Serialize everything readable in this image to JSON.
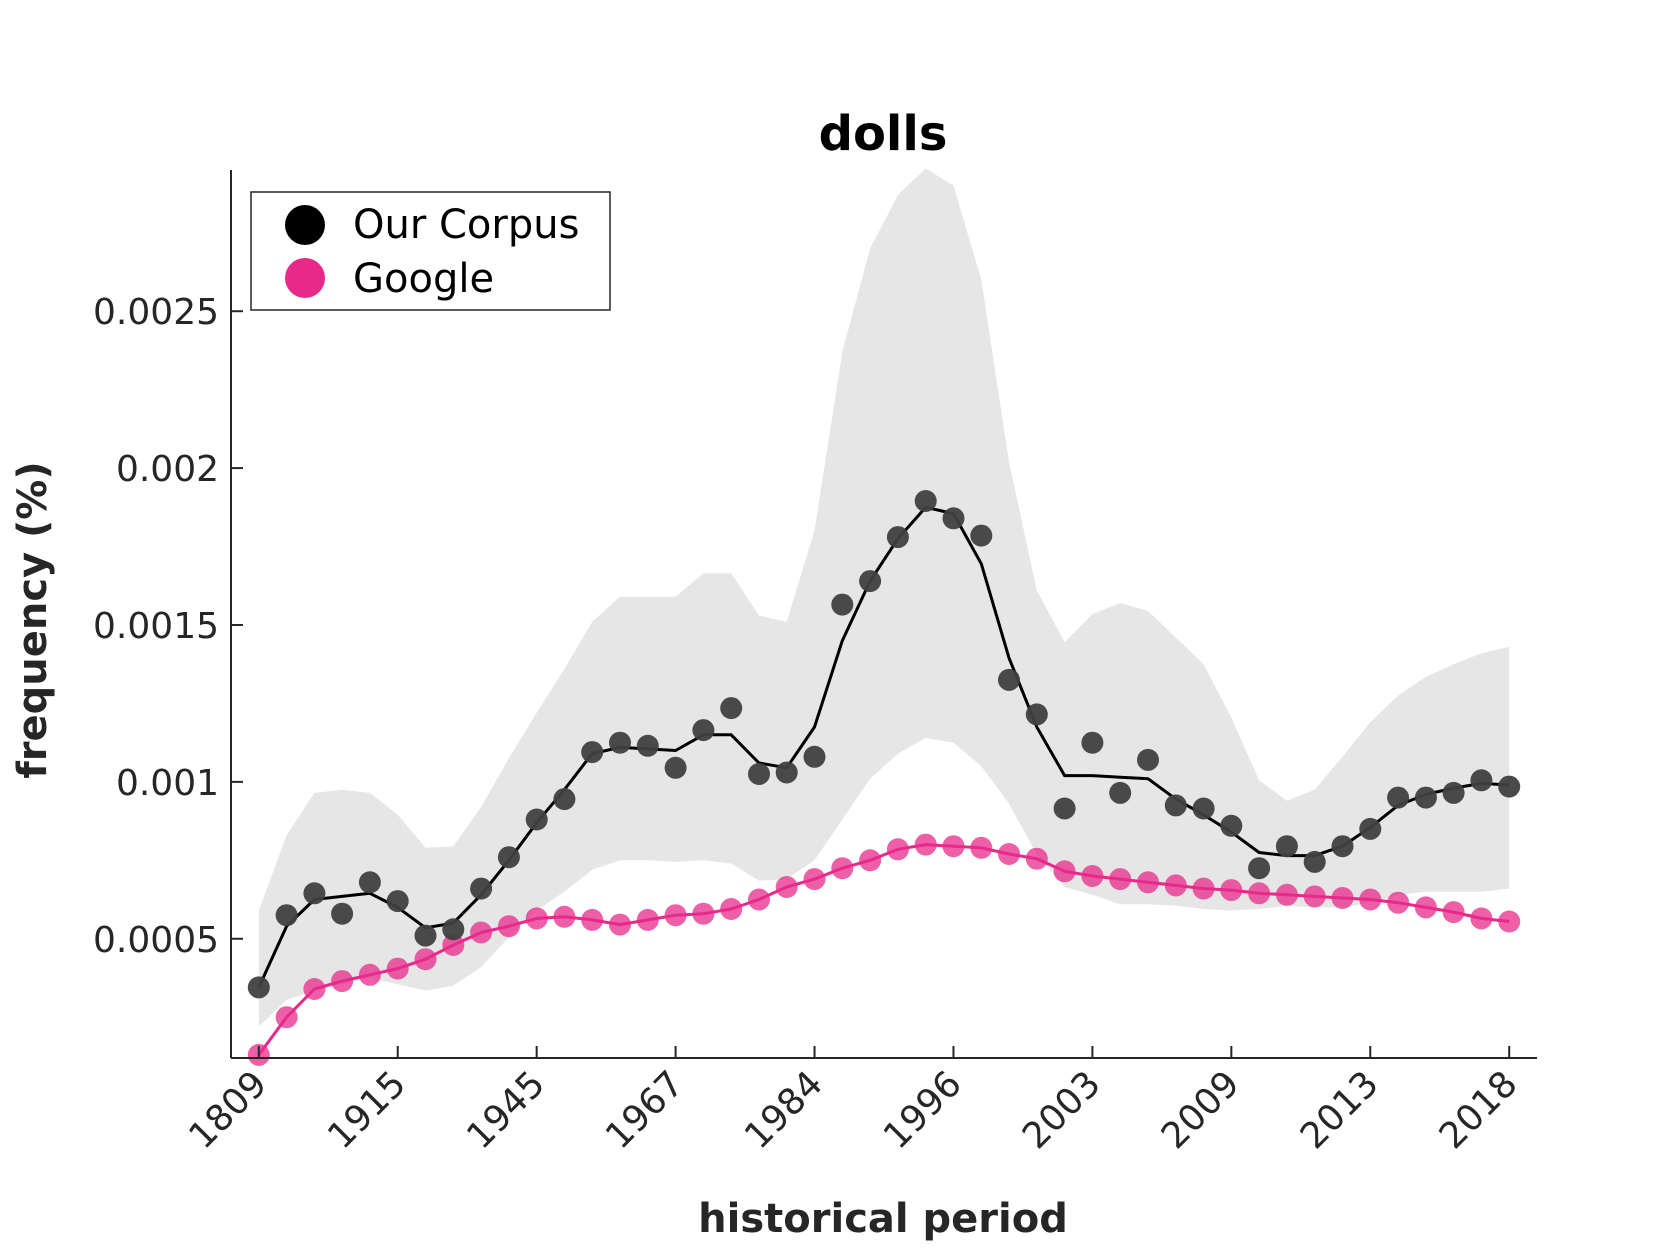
{
  "chart_data": {
    "type": "line",
    "title": "dolls",
    "xlabel": "historical period",
    "ylabel": "frequency (%)",
    "xtick_labels": [
      "1809",
      "1915",
      "1945",
      "1967",
      "1984",
      "1996",
      "2003",
      "2009",
      "2013",
      "2018"
    ],
    "xtick_positions": [
      1,
      6,
      11,
      16,
      21,
      26,
      31,
      36,
      41,
      46
    ],
    "x": [
      1,
      2,
      3,
      4,
      5,
      6,
      7,
      8,
      9,
      10,
      11,
      12,
      13,
      14,
      15,
      16,
      17,
      18,
      19,
      20,
      21,
      22,
      23,
      24,
      25,
      26,
      27,
      28,
      29,
      30,
      31,
      32,
      33,
      34,
      35,
      36,
      37,
      38,
      39,
      40,
      41,
      42,
      43,
      44,
      45,
      46
    ],
    "xlim": [
      0.0,
      47.0
    ],
    "ylim": [
      0.00012,
      0.00295
    ],
    "yticks": [
      0.0005,
      0.001,
      0.0015,
      0.002,
      0.0025
    ],
    "ytick_labels": [
      "0.0005",
      "0.001",
      "0.0015",
      "0.002",
      "0.0025"
    ],
    "legend": {
      "position": "top-left",
      "entries": [
        "Our Corpus",
        "Google"
      ]
    },
    "series": [
      {
        "name": "Our Corpus",
        "color": "#000000",
        "marker_color": "#404040",
        "points": [
          0.000345,
          0.000575,
          0.000645,
          0.00058,
          0.00068,
          0.00062,
          0.00051,
          0.00053,
          0.00066,
          0.00076,
          0.00088,
          0.000945,
          0.001095,
          0.001125,
          0.001115,
          0.001045,
          0.001165,
          0.001235,
          0.001025,
          0.00103,
          0.00108,
          0.001565,
          0.00164,
          0.00178,
          0.001895,
          0.00184,
          0.001785,
          0.001325,
          0.001215,
          0.000915,
          0.001125,
          0.000965,
          0.00107,
          0.000925,
          0.000915,
          0.00086,
          0.000725,
          0.000795,
          0.000745,
          0.000795,
          0.00085,
          0.00095,
          0.00095,
          0.000965,
          0.001005,
          0.000985
        ],
        "smoothed": [
          0.000345,
          0.00054,
          0.000625,
          0.000635,
          0.000645,
          0.0006,
          0.000535,
          0.00055,
          0.00064,
          0.00075,
          0.00087,
          0.000975,
          0.00109,
          0.00111,
          0.001105,
          0.0011,
          0.00115,
          0.00115,
          0.00106,
          0.001045,
          0.001175,
          0.00145,
          0.00164,
          0.001775,
          0.001875,
          0.001855,
          0.001695,
          0.001395,
          0.001175,
          0.00102,
          0.00102,
          0.001015,
          0.00101,
          0.000945,
          0.000895,
          0.00084,
          0.000775,
          0.000765,
          0.000765,
          0.000795,
          0.000855,
          0.000925,
          0.00096,
          0.00098,
          0.000995,
          0.00099
        ],
        "band_upper": [
          0.00059,
          0.00083,
          0.000965,
          0.000975,
          0.000965,
          0.000895,
          0.00079,
          0.000795,
          0.00092,
          0.001075,
          0.00122,
          0.00136,
          0.00151,
          0.00159,
          0.00159,
          0.00159,
          0.001665,
          0.001665,
          0.00153,
          0.00151,
          0.0018,
          0.00237,
          0.0027,
          0.00287,
          0.002955,
          0.0029,
          0.0026,
          0.00202,
          0.00161,
          0.001445,
          0.001535,
          0.00157,
          0.001545,
          0.00146,
          0.001375,
          0.001205,
          0.001005,
          0.00094,
          0.000975,
          0.00108,
          0.00119,
          0.001275,
          0.001335,
          0.001375,
          0.00141,
          0.00143
        ],
        "band_lower": [
          0.00022,
          0.000305,
          0.000335,
          0.000355,
          0.000375,
          0.000355,
          0.000335,
          0.00035,
          0.00041,
          0.000505,
          0.00059,
          0.00065,
          0.00072,
          0.00075,
          0.00075,
          0.000745,
          0.00075,
          0.00074,
          0.000685,
          0.00069,
          0.00075,
          0.00088,
          0.00101,
          0.00109,
          0.00114,
          0.001125,
          0.00105,
          0.00093,
          0.00077,
          0.000665,
          0.00064,
          0.00061,
          0.00061,
          0.000605,
          0.000595,
          0.00059,
          0.000595,
          0.000605,
          0.0006,
          0.0006,
          0.000615,
          0.00064,
          0.00065,
          0.00065,
          0.00065,
          0.00066
        ]
      },
      {
        "name": "Google",
        "color": "#e7298a",
        "marker_color": "#e7298a",
        "points": [
          0.00013,
          0.00025,
          0.00034,
          0.000365,
          0.000385,
          0.000405,
          0.000435,
          0.00048,
          0.00052,
          0.00054,
          0.000565,
          0.00057,
          0.00056,
          0.000545,
          0.00056,
          0.000575,
          0.00058,
          0.000595,
          0.000625,
          0.000665,
          0.00069,
          0.000725,
          0.00075,
          0.000785,
          0.0008,
          0.000795,
          0.00079,
          0.00077,
          0.000755,
          0.000715,
          0.0007,
          0.00069,
          0.00068,
          0.00067,
          0.00066,
          0.000655,
          0.000645,
          0.00064,
          0.000635,
          0.00063,
          0.000625,
          0.000615,
          0.0006,
          0.000585,
          0.000565,
          0.000555
        ]
      }
    ]
  }
}
